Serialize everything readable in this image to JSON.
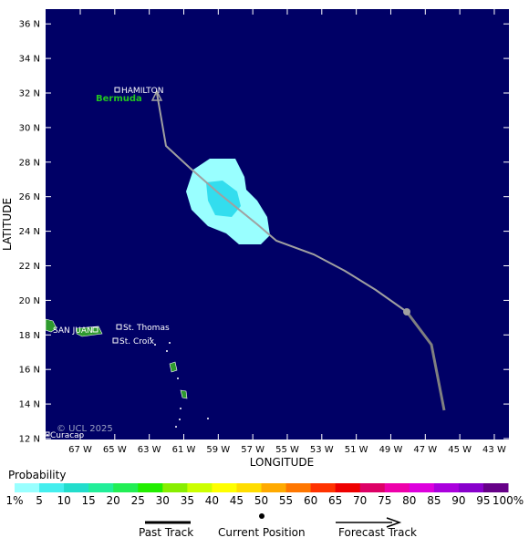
{
  "map": {
    "lat_ticks": [
      "12 N",
      "14 N",
      "16 N",
      "18 N",
      "20 N",
      "22 N",
      "24 N",
      "26 N",
      "28 N",
      "30 N",
      "32 N",
      "34 N",
      "36 N"
    ],
    "lon_ticks": [
      "67 W",
      "65 W",
      "63 W",
      "61 W",
      "59 W",
      "57 W",
      "55 W",
      "53 W",
      "51 W",
      "49 W",
      "47 W",
      "45 W",
      "43 W"
    ],
    "xlabel": "LONGITUDE",
    "ylabel": "LATITUDE",
    "copyright": "© UCL 2025",
    "places": {
      "hamilton": "HAMILTON",
      "bermuda": "Bermuda",
      "san_juan": "SAN JUAN",
      "st_thomas": "St. Thomas",
      "st_croix": "St. Croix",
      "curacao": "Curacao"
    },
    "colors": {
      "ocean": "#000066",
      "land": "#2e9a2e",
      "past_track": "#808080",
      "forecast_track": "#a0a0a0",
      "prob_low": "#99ffff",
      "prob_mid": "#33ddee"
    }
  },
  "legend": {
    "title": "Probability",
    "labels": [
      "1%",
      "5",
      "10",
      "15",
      "20",
      "25",
      "30",
      "35",
      "40",
      "45",
      "50",
      "55",
      "60",
      "65",
      "70",
      "75",
      "80",
      "85",
      "90",
      "95",
      "100%"
    ],
    "colors": [
      "#99ffff",
      "#44eeee",
      "#22ddcc",
      "#22ee99",
      "#22ee55",
      "#22ee00",
      "#88ee00",
      "#ccff00",
      "#ffff00",
      "#ffdd00",
      "#ffaa00",
      "#ff7700",
      "#ff3300",
      "#ee0000",
      "#dd0066",
      "#ee00aa",
      "#dd00dd",
      "#aa00dd",
      "#8800cc",
      "#660088"
    ]
  },
  "key": {
    "past_track": "Past Track",
    "current_position": "Current Position",
    "forecast_track": "Forecast Track"
  }
}
